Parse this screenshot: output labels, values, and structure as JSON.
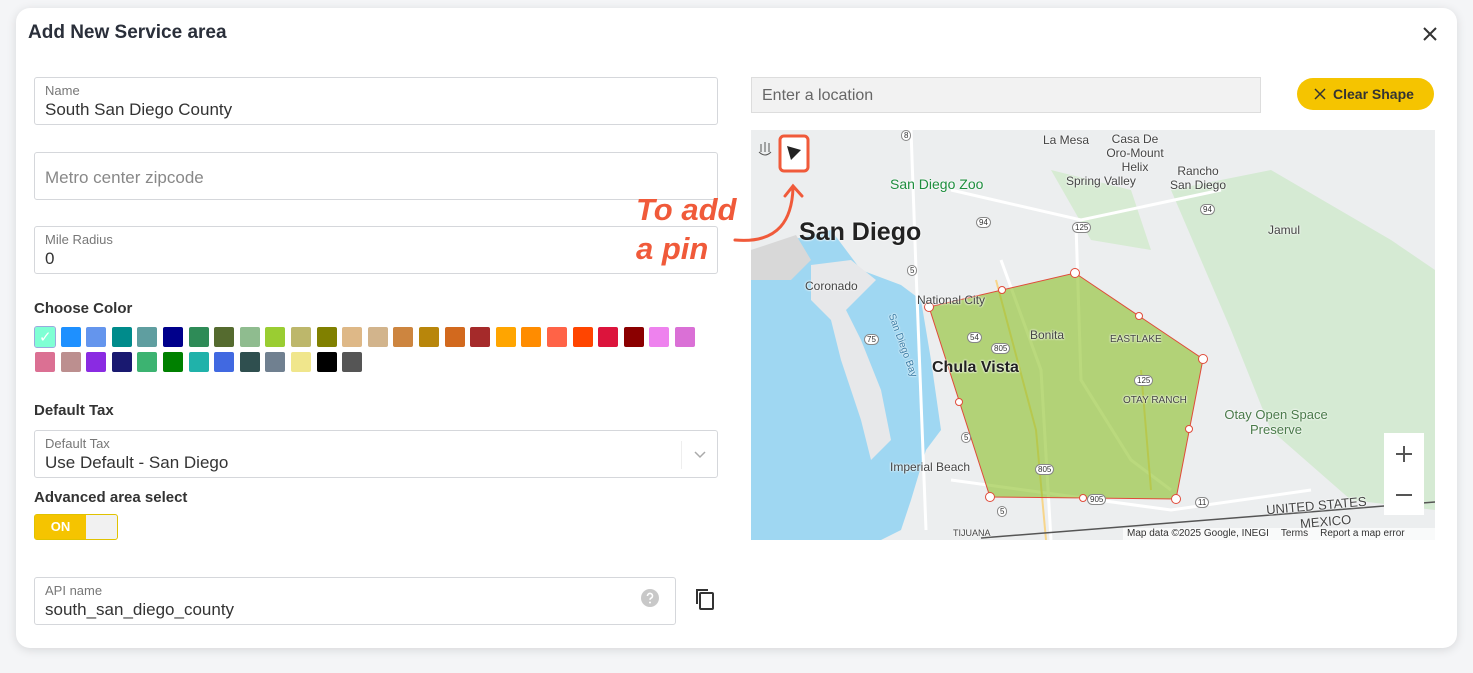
{
  "header": {
    "title": "Add New Service area"
  },
  "form": {
    "name": {
      "label": "Name",
      "value": "South San Diego County"
    },
    "zipcode": {
      "placeholder": "Metro center zipcode"
    },
    "mile_radius": {
      "label": "Mile Radius",
      "value": "0"
    },
    "choose_color": {
      "label": "Choose Color",
      "selected": 0,
      "colors": [
        "#7fffd4",
        "#1e90ff",
        "#6495ed",
        "#008b8b",
        "#5f9ea0",
        "#00008b",
        "#2e8b57",
        "#556b2f",
        "#8fbc8f",
        "#9acd32",
        "#bdb76b",
        "#808000",
        "#deb887",
        "#d2b48c",
        "#cd853f",
        "#b8860b",
        "#d2691e",
        "#a52a2a",
        "#ffa500",
        "#ff8c00",
        "#ff6347",
        "#ff4500",
        "#dc143c",
        "#8b0000",
        "#ee82ee",
        "#da70d6",
        "#db7093",
        "#bc8f8f",
        "#8a2be2",
        "#191970",
        "#3cb371",
        "#008000",
        "#20b2aa",
        "#4169e1",
        "#2f4f4f",
        "#708090",
        "#f0e68c",
        "#000000",
        "#555555"
      ]
    },
    "default_tax": {
      "heading": "Default Tax",
      "label": "Default Tax",
      "value": "Use Default - San Diego"
    },
    "advanced": {
      "label": "Advanced area select",
      "toggle": "ON"
    },
    "api_name": {
      "label": "API name",
      "value": "south_san_diego_county"
    }
  },
  "map": {
    "search_placeholder": "Enter a location",
    "clear_button": "Clear Shape",
    "labels": [
      "La Mesa",
      "Casa De Oro-Mount Helix",
      "Rancho San Diego",
      "San Diego Zoo",
      "Spring Valley",
      "San Diego",
      "Jamul",
      "Coronado",
      "National City",
      "Bonita",
      "EASTLAKE",
      "Chula Vista",
      "OTAY RANCH",
      "Otay Open Space Preserve",
      "Imperial Beach",
      "UNITED STATES",
      "MEXICO",
      "TIJUANA",
      "San Diego Bay"
    ],
    "shields": [
      "8",
      "94",
      "94",
      "125",
      "5",
      "54",
      "805",
      "75",
      "125",
      "5",
      "805",
      "905",
      "11",
      "5"
    ],
    "attribution": "Map data ©2025 Google, INEGI",
    "terms": "Terms",
    "report": "Report a map error"
  },
  "annotation": "To add a pin"
}
